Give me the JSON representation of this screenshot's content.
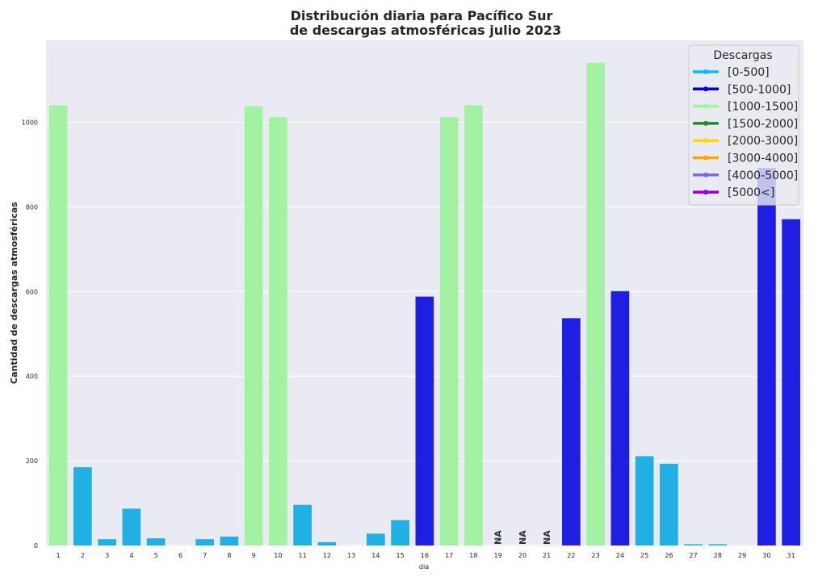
{
  "chart_data": {
    "type": "bar",
    "title_line1": "Distribución diaria para Pacífico Sur",
    "title_line2": "de descargas atmosféricas julio 2023",
    "xlabel": "dia",
    "ylabel": "Cantidad de descargas atmosféricas",
    "ylim": [
      0,
      1190
    ],
    "yticks": [
      "0",
      "200",
      "400",
      "600",
      "800",
      "1000"
    ],
    "ytick_values": [
      0,
      200,
      400,
      600,
      800,
      1000
    ],
    "grid": true,
    "categories": [
      "1",
      "2",
      "3",
      "4",
      "5",
      "6",
      "7",
      "8",
      "9",
      "10",
      "11",
      "12",
      "13",
      "14",
      "15",
      "16",
      "17",
      "18",
      "19",
      "20",
      "21",
      "22",
      "23",
      "24",
      "25",
      "26",
      "27",
      "28",
      "29",
      "30",
      "31"
    ],
    "values": [
      1040,
      185,
      15,
      87,
      17,
      0,
      15,
      21,
      1038,
      1012,
      96,
      8,
      0,
      28,
      60,
      588,
      1012,
      1040,
      null,
      null,
      null,
      537,
      1140,
      601,
      211,
      193,
      3,
      3,
      0,
      892,
      771
    ],
    "bar_classes": [
      "[1000-1500]",
      "[0-500]",
      "[0-500]",
      "[0-500]",
      "[0-500]",
      "[0-500]",
      "[0-500]",
      "[0-500]",
      "[1000-1500]",
      "[1000-1500]",
      "[0-500]",
      "[0-500]",
      "[0-500]",
      "[0-500]",
      "[0-500]",
      "[500-1000]",
      "[1000-1500]",
      "[1000-1500]",
      null,
      null,
      null,
      "[500-1000]",
      "[1000-1500]",
      "[500-1000]",
      "[0-500]",
      "[0-500]",
      "[0-500]",
      "[0-500]",
      "[0-500]",
      "[500-1000]",
      "[500-1000]"
    ],
    "na_label": "NA",
    "legend": {
      "title": "Descargas",
      "placement": "top-right",
      "items": [
        {
          "label": "[0-500]",
          "color": "#00bfff"
        },
        {
          "label": "[500-1000]",
          "color": "#0000e0"
        },
        {
          "label": "[1000-1500]",
          "color": "#98fb98"
        },
        {
          "label": "[1500-2000]",
          "color": "#228b22"
        },
        {
          "label": "[2000-3000]",
          "color": "#ffd700"
        },
        {
          "label": "[3000-4000]",
          "color": "#ffa500"
        },
        {
          "label": "[4000-5000]",
          "color": "#7b68ee"
        },
        {
          "label": "[5000<]",
          "color": "#9400d3"
        }
      ]
    },
    "bar_colors": {
      "[0-500]": "#21b0e3",
      "[500-1000]": "#1f1fe3",
      "[1000-1500]": "#a3f2a3"
    },
    "background_color": "#eaeaf2",
    "grid_color": "#ffffff"
  }
}
